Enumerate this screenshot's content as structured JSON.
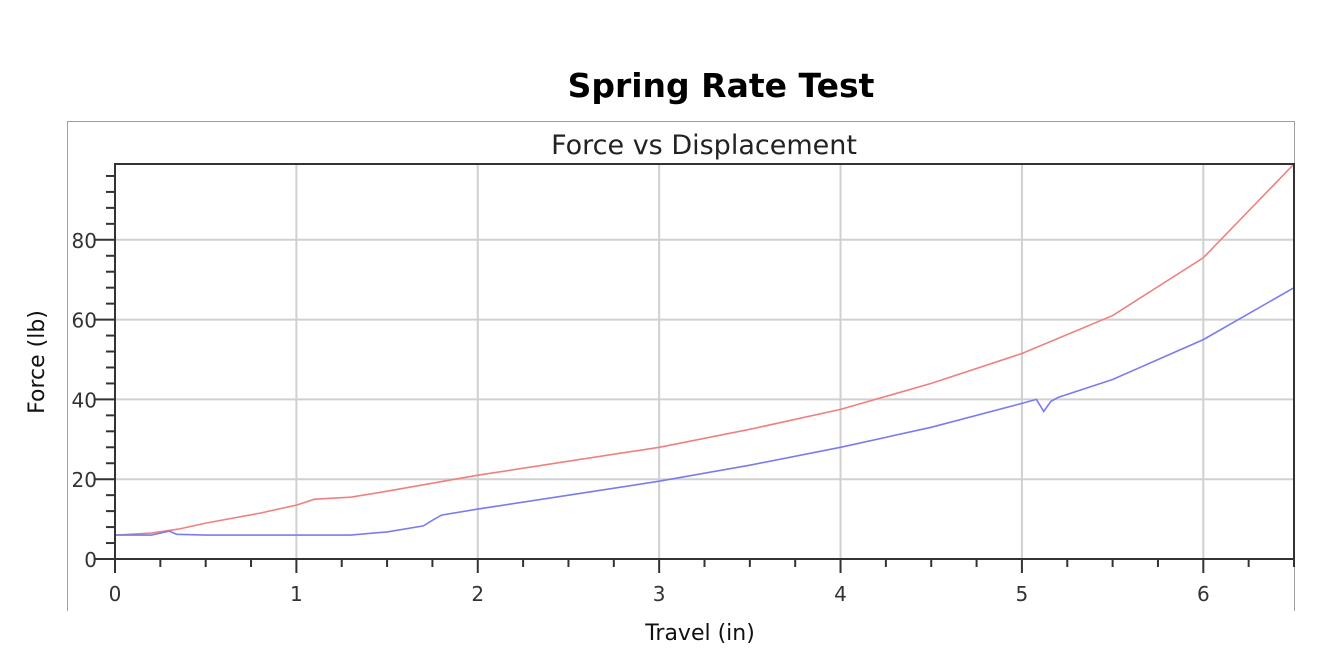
{
  "title": "Spring Rate Test",
  "chart_data": {
    "type": "line",
    "title": "Force vs Displacement",
    "xlabel": "Travel (in)",
    "ylabel": "Force (lb)",
    "xlim": [
      0,
      6.5
    ],
    "ylim": [
      0,
      99
    ],
    "xticks": [
      0,
      1,
      2,
      3,
      4,
      5,
      6
    ],
    "yticks": [
      0,
      20,
      40,
      60,
      80
    ],
    "grid": true,
    "series": [
      {
        "color": "#f08080",
        "x": [
          0,
          0.2,
          0.35,
          0.5,
          0.8,
          1.0,
          1.1,
          1.3,
          1.5,
          1.75,
          2.0,
          2.5,
          3.0,
          3.5,
          4.0,
          4.5,
          5.0,
          5.5,
          6.0,
          6.5
        ],
        "y": [
          6,
          6.5,
          7.5,
          9,
          11.5,
          13.5,
          15,
          15.5,
          17,
          19,
          21,
          24.5,
          28,
          32.5,
          37.5,
          44,
          51.5,
          61,
          75.5,
          99
        ]
      },
      {
        "color": "#7b7bf0",
        "x": [
          0,
          0.2,
          0.3,
          0.34,
          0.5,
          1.0,
          1.3,
          1.5,
          1.7,
          1.75,
          1.8,
          2.0,
          2.5,
          3.0,
          3.5,
          4.0,
          4.5,
          5.0,
          5.08,
          5.12,
          5.16,
          5.2,
          5.5,
          6.0,
          6.5
        ],
        "y": [
          6,
          6,
          7,
          6.2,
          6,
          6,
          6,
          6.8,
          8.3,
          9.7,
          11,
          12.5,
          16,
          19.5,
          23.5,
          28,
          33,
          39,
          40,
          37,
          39.5,
          40.5,
          45,
          55,
          68
        ]
      }
    ]
  }
}
